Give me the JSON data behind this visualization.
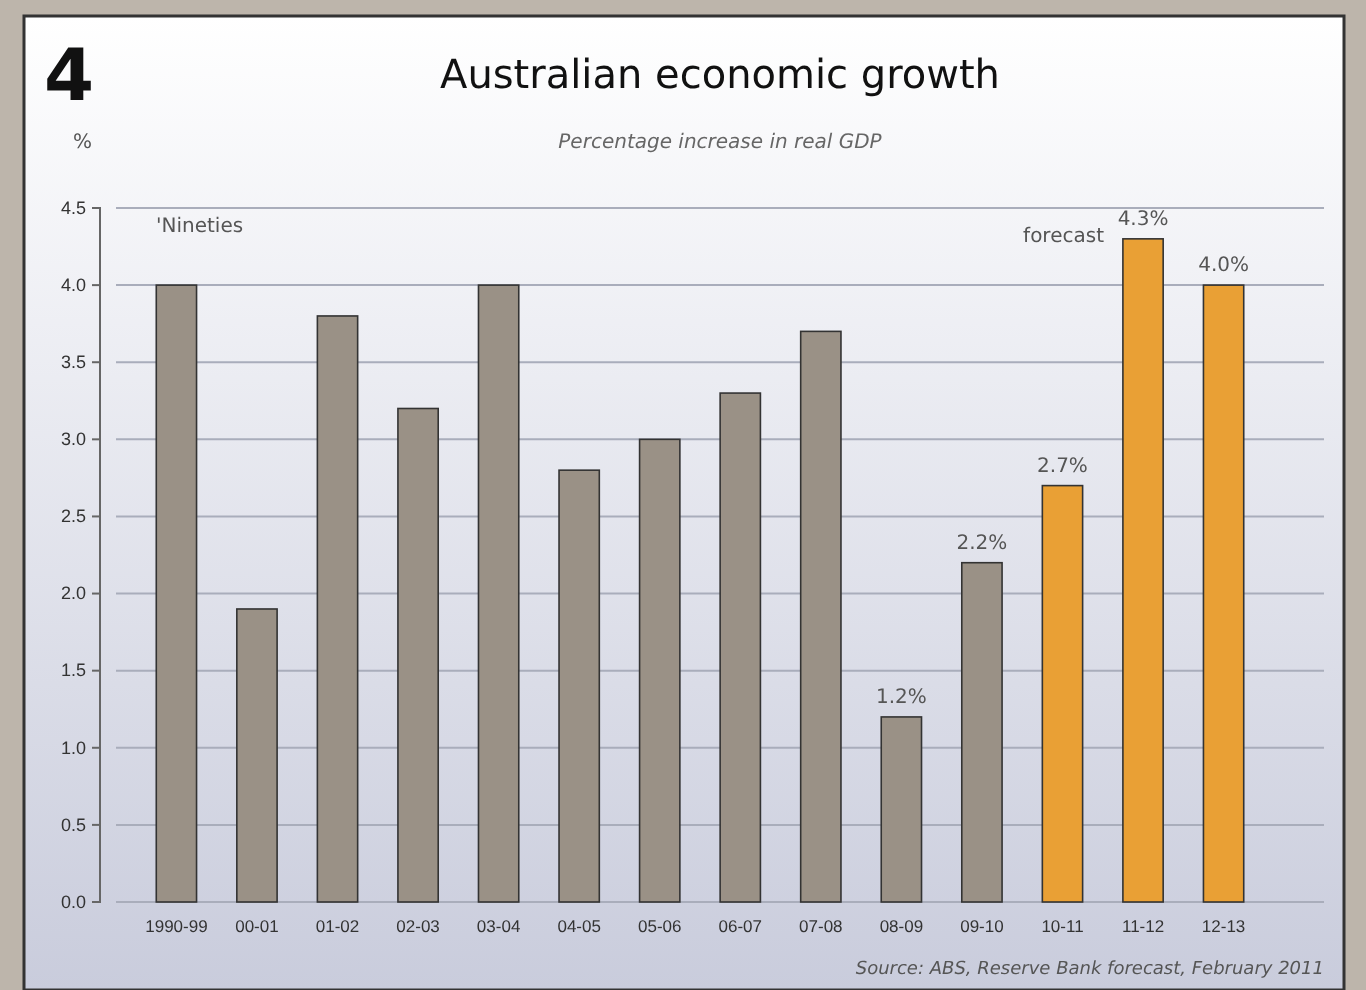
{
  "chart_data": {
    "type": "bar",
    "title": "Australian economic growth",
    "subtitle": "Percentage increase in real GDP",
    "ylabel": "%",
    "categories": [
      "1990-99",
      "00-01",
      "01-02",
      "02-03",
      "03-04",
      "04-05",
      "05-06",
      "06-07",
      "07-08",
      "08-09",
      "09-10",
      "10-11",
      "11-12",
      "12-13"
    ],
    "values": [
      4.0,
      1.9,
      3.8,
      3.2,
      4.0,
      2.8,
      3.0,
      3.3,
      3.7,
      1.2,
      2.2,
      2.7,
      4.3,
      4.0
    ],
    "colors": [
      "#9a9186",
      "#9a9186",
      "#9a9186",
      "#9a9186",
      "#9a9186",
      "#9a9186",
      "#9a9186",
      "#9a9186",
      "#9a9186",
      "#9a9186",
      "#9a9186",
      "#e9a035",
      "#e9a035",
      "#e9a035"
    ],
    "value_labels": [
      null,
      null,
      null,
      null,
      null,
      null,
      null,
      null,
      null,
      "1.2%",
      "2.2%",
      "2.7%",
      "4.3%",
      "4.0%"
    ],
    "ylim": [
      0,
      4.5
    ],
    "yticks": [
      {
        "value": 0,
        "label": "0.0"
      },
      {
        "value": 0.5,
        "label": "0.5"
      },
      {
        "value": 1,
        "label": "1.0"
      },
      {
        "value": 1.5,
        "label": "1.5"
      },
      {
        "value": 2,
        "label": "2.0"
      },
      {
        "value": 2.5,
        "label": "2.5"
      },
      {
        "value": 3,
        "label": "3.0"
      },
      {
        "value": 3.5,
        "label": "3.5"
      },
      {
        "value": 4,
        "label": "4.0"
      },
      {
        "value": 4.5,
        "label": "4.5"
      }
    ],
    "grid": "y",
    "annotations": [
      "4",
      "'Nineties",
      "forecast",
      "Source: ABS, Reserve Bank forecast, February 2011"
    ]
  }
}
